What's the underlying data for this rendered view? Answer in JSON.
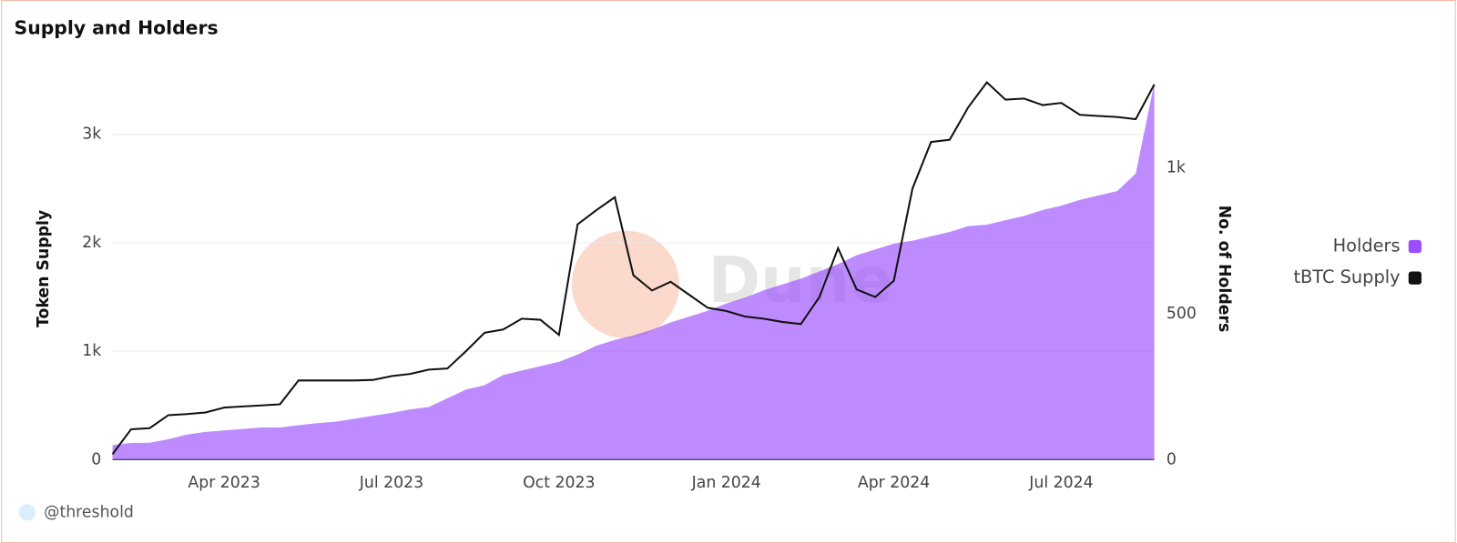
{
  "chart_data": {
    "type": "area_line",
    "title": "Supply and Holders",
    "y_label": "Token Supply",
    "y2_label": "No. of Holders",
    "watermark": "Dune",
    "footer": "@threshold",
    "legend": "right",
    "categories": [
      null,
      null,
      null,
      null,
      null,
      null,
      "Apr 2023",
      null,
      null,
      null,
      null,
      null,
      null,
      null,
      null,
      "Jul 2023",
      null,
      null,
      null,
      null,
      null,
      null,
      null,
      null,
      "Oct 2023",
      null,
      null,
      null,
      null,
      null,
      null,
      null,
      null,
      "Jan 2024",
      null,
      null,
      null,
      null,
      null,
      null,
      null,
      null,
      "Apr 2024",
      null,
      null,
      null,
      null,
      null,
      null,
      null,
      null,
      "Jul 2024",
      null,
      null,
      null,
      null,
      null
    ],
    "series": [
      {
        "name": "Holders",
        "color": "#9b4dff",
        "axis": "y2",
        "kind": "area",
        "values": [
          50,
          57,
          58,
          70,
          86,
          95,
          100,
          105,
          110,
          110,
          118,
          125,
          130,
          140,
          150,
          160,
          172,
          180,
          210,
          240,
          255,
          290,
          305,
          320,
          335,
          360,
          390,
          410,
          425,
          445,
          470,
          490,
          510,
          535,
          555,
          580,
          600,
          620,
          645,
          670,
          700,
          720,
          740,
          750,
          765,
          780,
          800,
          805,
          820,
          835,
          855,
          870,
          890,
          905,
          920,
          980,
          1290
        ]
      },
      {
        "name": "tBTC Supply",
        "color": "#111111",
        "axis": "y",
        "kind": "line",
        "values": [
          50,
          280,
          290,
          410,
          420,
          435,
          480,
          490,
          500,
          510,
          730,
          730,
          730,
          730,
          735,
          770,
          790,
          830,
          840,
          1000,
          1170,
          1200,
          1300,
          1290,
          1150,
          2170,
          2300,
          2420,
          1700,
          1560,
          1640,
          1520,
          1400,
          1370,
          1320,
          1300,
          1270,
          1250,
          1500,
          1950,
          1570,
          1500,
          1650,
          2500,
          2930,
          2950,
          3250,
          3480,
          3320,
          3330,
          3270,
          3290,
          3180,
          3170,
          3160,
          3140,
          3460
        ]
      }
    ],
    "ylim": [
      0,
      3500
    ],
    "yticks": [
      0,
      {
        "value": 1000,
        "label": "1k"
      },
      {
        "value": 2000,
        "label": "2k"
      },
      {
        "value": 3000,
        "label": "3k"
      }
    ],
    "y2lim": [
      0,
      1300
    ],
    "y2ticks": [
      0,
      500,
      {
        "value": 1000,
        "label": "1k"
      }
    ],
    "grid": true
  }
}
